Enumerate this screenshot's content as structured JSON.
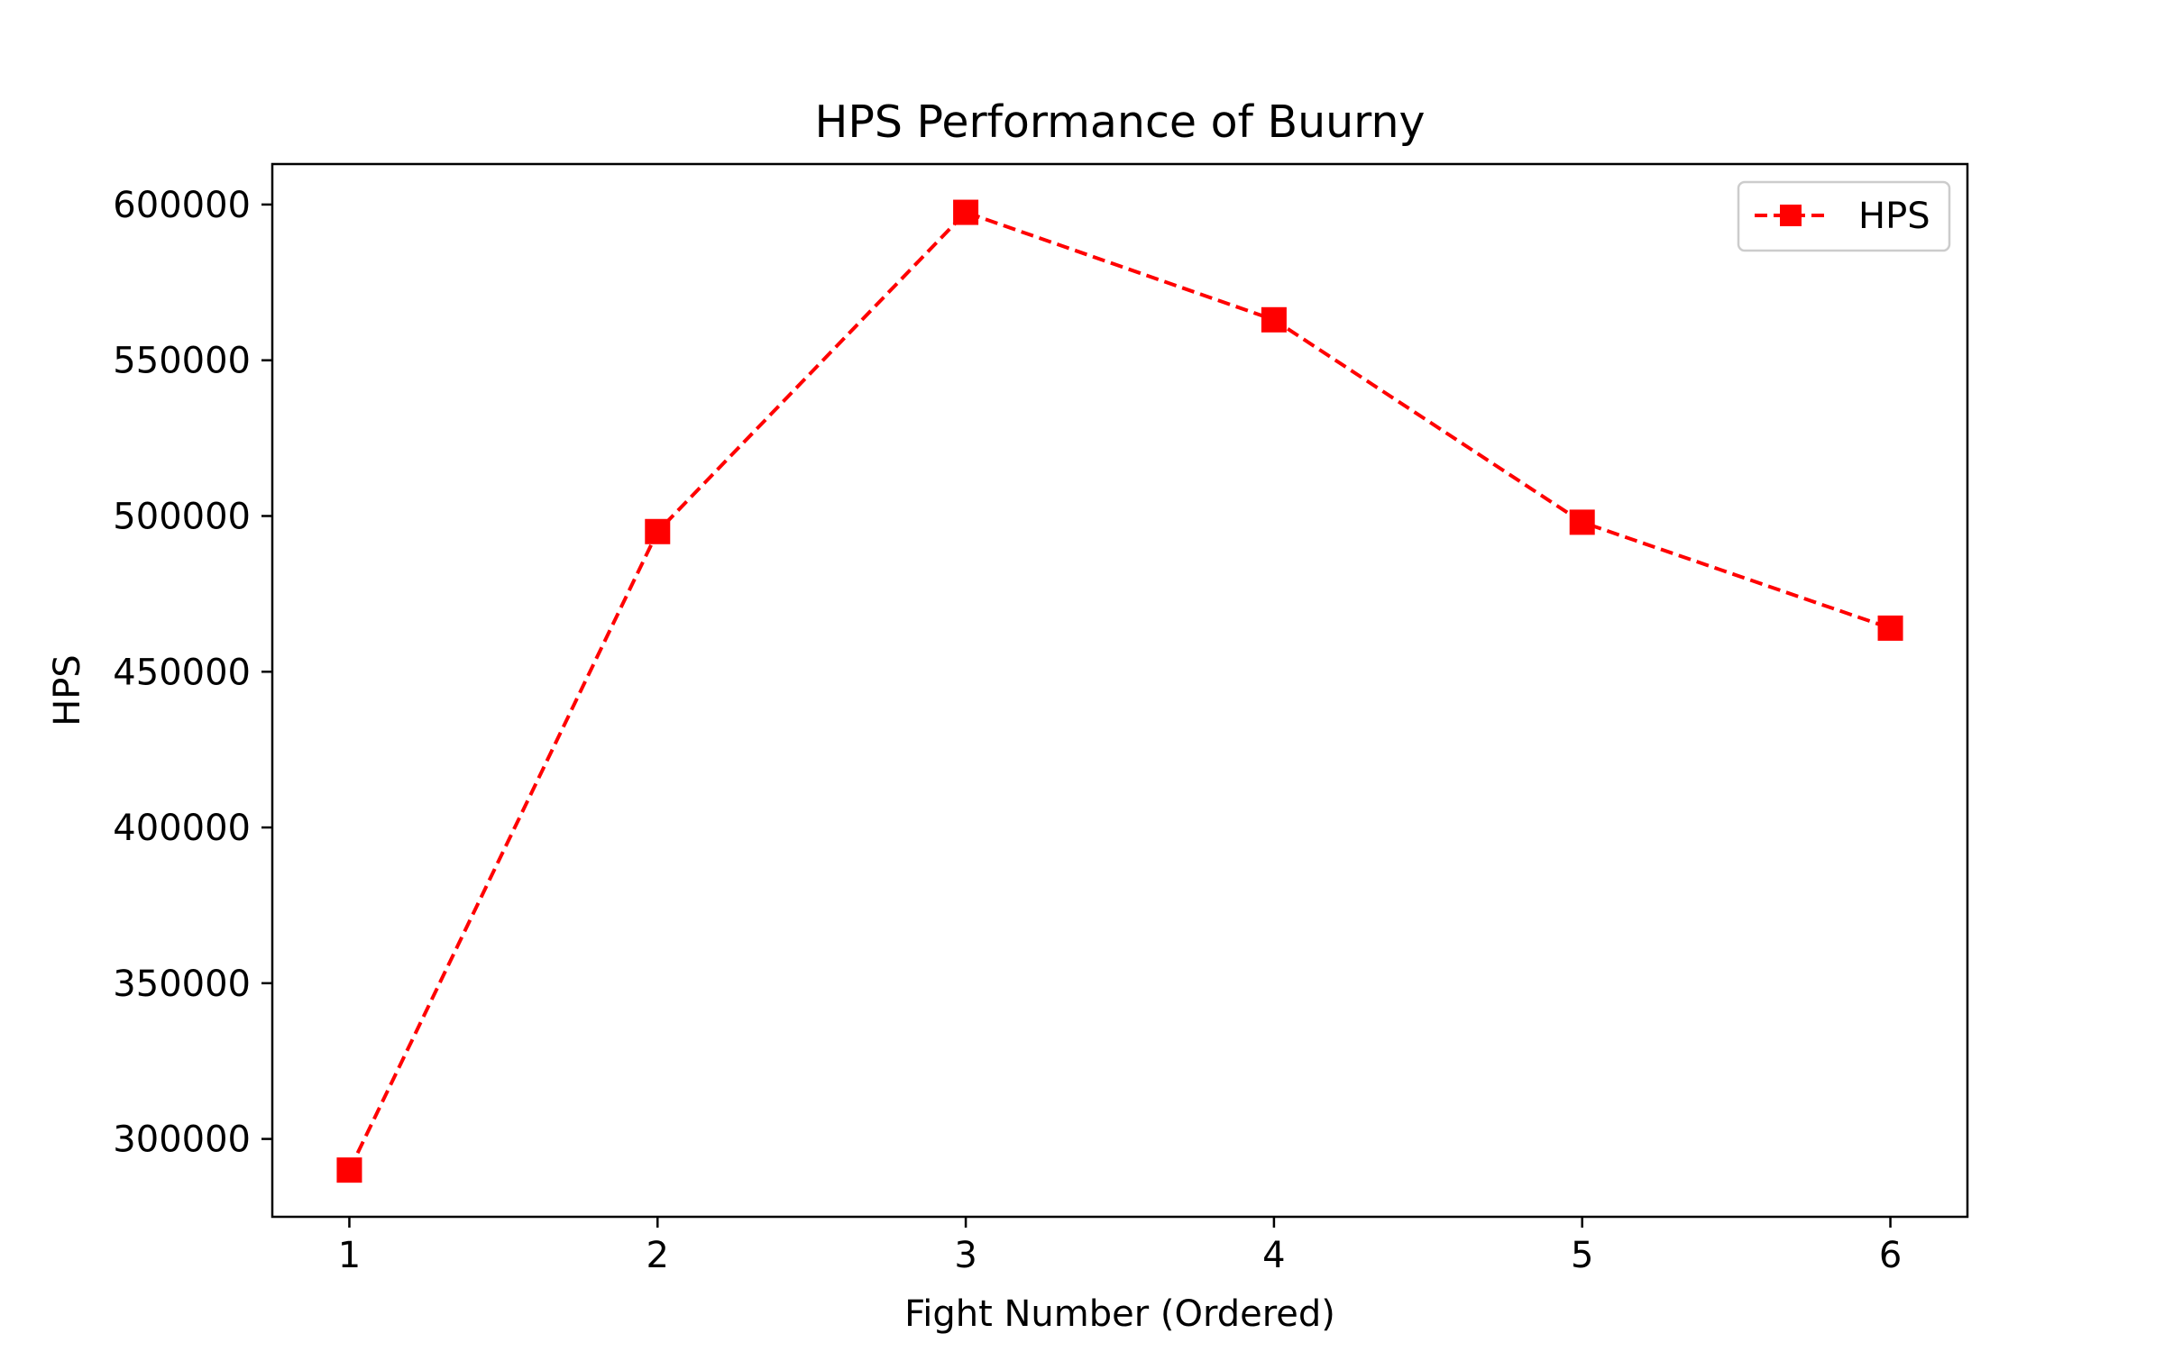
{
  "chart_data": {
    "type": "line",
    "title": "HPS Performance of Buurny",
    "xlabel": "Fight Number (Ordered)",
    "ylabel": "HPS",
    "x": [
      1,
      2,
      3,
      4,
      5,
      6
    ],
    "xlim": [
      0.75,
      6.25
    ],
    "ylim": [
      275000,
      613000
    ],
    "xticks": [
      1,
      2,
      3,
      4,
      5,
      6
    ],
    "yticks": [
      300000,
      350000,
      400000,
      450000,
      500000,
      550000,
      600000
    ],
    "series": [
      {
        "name": "HPS",
        "values": [
          290000,
          495000,
          597500,
          563000,
          498000,
          464000
        ],
        "color": "#ff0000",
        "line_style": "dashed",
        "marker": "square"
      }
    ],
    "legend": {
      "position": "top-right",
      "entries": [
        "HPS"
      ]
    },
    "grid": false
  }
}
